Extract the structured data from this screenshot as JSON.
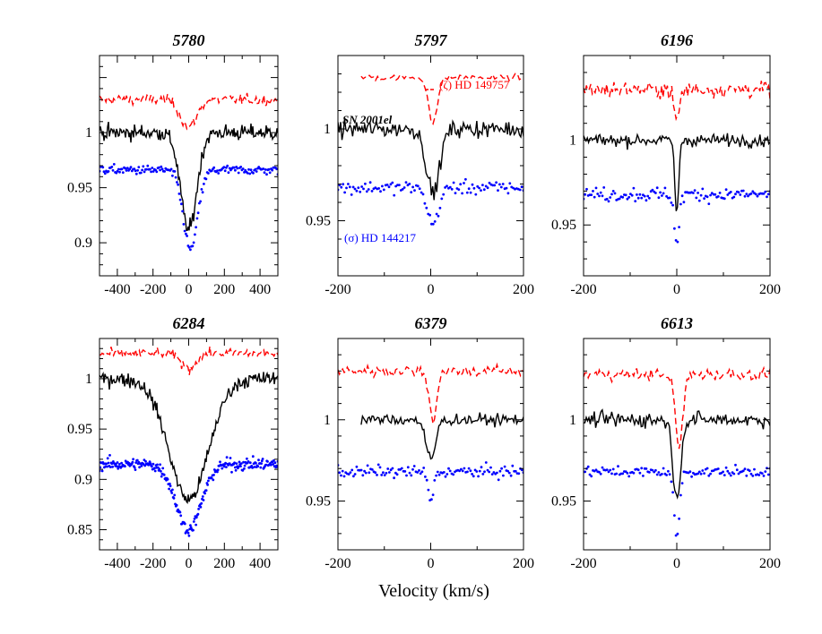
{
  "figure": {
    "xlabel": "Velocity (km/s)",
    "labels": {
      "zeta": "(ζ)  HD 149757",
      "sn": "SN 2001el",
      "sigma": "(σ) HD 144217"
    }
  },
  "colors": {
    "zeta": "#ff0000",
    "sn": "#000000",
    "sigma": "#0000ff",
    "axis": "#000000"
  },
  "chart_data": [
    {
      "type": "line",
      "title": "5780",
      "xlim": [
        -500,
        500
      ],
      "ylim": [
        0.87,
        1.07
      ],
      "xticks": [
        -400,
        -200,
        0,
        200,
        400
      ],
      "xtick_labels": [
        "-400",
        "-200",
        "0",
        "200",
        "400"
      ],
      "yticks": [
        0.9,
        0.95,
        1
      ],
      "ytick_labels": [
        "0.9",
        "0.95",
        "1"
      ],
      "series": [
        {
          "name": "(ζ) HD 149757",
          "style": "dashed",
          "baseline": 1.03,
          "depth": 0.025,
          "width": 45,
          "offset": 0,
          "noise": 0.004,
          "xmin": -500,
          "xmax": 500,
          "npts": 140
        },
        {
          "name": "SN 2001el",
          "style": "solid",
          "baseline": 1.0,
          "depth": 0.088,
          "width": 45,
          "offset": 0,
          "noise": 0.006,
          "xmin": -500,
          "xmax": 500,
          "npts": 200
        },
        {
          "name": "(σ) HD 144217",
          "style": "dotted",
          "baseline": 0.966,
          "depth": 0.072,
          "width": 40,
          "offset": 10,
          "noise": 0.0035,
          "xmin": -500,
          "xmax": 500,
          "npts": 160
        }
      ]
    },
    {
      "type": "line",
      "title": "5797",
      "xlim": [
        -200,
        200
      ],
      "ylim": [
        0.92,
        1.04
      ],
      "xticks": [
        -200,
        0,
        200
      ],
      "xtick_labels": [
        "-200",
        "0",
        "200"
      ],
      "yticks": [
        0.95,
        1
      ],
      "ytick_labels": [
        "0.95",
        "1"
      ],
      "series": [
        {
          "name": "(ζ) HD 149757",
          "style": "dashed",
          "baseline": 1.028,
          "depth": 0.026,
          "width": 9,
          "offset": 5,
          "noise": 0.0015,
          "xmin": -150,
          "xmax": 200,
          "npts": 80
        },
        {
          "name": "SN 2001el",
          "style": "solid",
          "baseline": 1.0,
          "depth": 0.035,
          "width": 14,
          "offset": 5,
          "noise": 0.004,
          "xmin": -200,
          "xmax": 200,
          "npts": 140
        },
        {
          "name": "(σ) HD 144217",
          "style": "dotted",
          "baseline": 0.968,
          "depth": 0.02,
          "width": 12,
          "offset": 5,
          "noise": 0.003,
          "xmin": -200,
          "xmax": 200,
          "npts": 110
        }
      ]
    },
    {
      "type": "line",
      "title": "6196",
      "xlim": [
        -200,
        200
      ],
      "ylim": [
        0.92,
        1.05
      ],
      "xticks": [
        -200,
        0,
        200
      ],
      "xtick_labels": [
        "-200",
        "0",
        "200"
      ],
      "yticks": [
        0.95,
        1
      ],
      "ytick_labels": [
        "0.95",
        "1"
      ],
      "series": [
        {
          "name": "(ζ) HD 149757",
          "style": "dashed",
          "baseline": 1.03,
          "depth": 0.018,
          "width": 6,
          "offset": 0,
          "noise": 0.004,
          "xmin": -200,
          "xmax": 200,
          "npts": 130
        },
        {
          "name": "SN 2001el",
          "style": "solid",
          "baseline": 1.0,
          "depth": 0.045,
          "width": 4,
          "offset": 0,
          "noise": 0.003,
          "xmin": -200,
          "xmax": 200,
          "npts": 150
        },
        {
          "name": "(σ) HD 144217",
          "style": "dotted",
          "baseline": 0.968,
          "depth": 0.03,
          "width": 5,
          "offset": 0,
          "noise": 0.0035,
          "xmin": -200,
          "xmax": 200,
          "npts": 120
        }
      ]
    },
    {
      "type": "line",
      "title": "6284",
      "xlim": [
        -500,
        500
      ],
      "ylim": [
        0.83,
        1.04
      ],
      "xticks": [
        -400,
        -200,
        0,
        200,
        400
      ],
      "xtick_labels": [
        "-400",
        "-200",
        "0",
        "200",
        "400"
      ],
      "yticks": [
        0.85,
        0.9,
        0.95,
        1
      ],
      "ytick_labels": [
        "0.85",
        "0.9",
        "0.95",
        "1"
      ],
      "series": [
        {
          "name": "(ζ) HD 149757",
          "style": "dashed",
          "baseline": 1.025,
          "depth": 0.015,
          "width": 40,
          "offset": 0,
          "noise": 0.004,
          "xmin": -500,
          "xmax": 500,
          "npts": 140
        },
        {
          "name": "SN 2001el",
          "style": "solid",
          "baseline": 1.0,
          "depth": 0.12,
          "width": 110,
          "offset": 0,
          "noise": 0.006,
          "xmin": -500,
          "xmax": 500,
          "npts": 200
        },
        {
          "name": "(σ) HD 144217",
          "style": "dotted",
          "baseline": 0.915,
          "depth": 0.065,
          "width": 70,
          "offset": 0,
          "noise": 0.005,
          "xmin": -500,
          "xmax": 500,
          "npts": 260
        }
      ]
    },
    {
      "type": "line",
      "title": "6379",
      "xlim": [
        -200,
        200
      ],
      "ylim": [
        0.92,
        1.05
      ],
      "xticks": [
        -200,
        0,
        200
      ],
      "xtick_labels": [
        "-200",
        "0",
        "200"
      ],
      "yticks": [
        0.95,
        1
      ],
      "ytick_labels": [
        "0.95",
        "1"
      ],
      "series": [
        {
          "name": "(ζ) HD 149757",
          "style": "dashed",
          "baseline": 1.03,
          "depth": 0.03,
          "width": 8,
          "offset": 5,
          "noise": 0.003,
          "xmin": -200,
          "xmax": 200,
          "npts": 120
        },
        {
          "name": "SN 2001el",
          "style": "solid",
          "baseline": 1.0,
          "depth": 0.025,
          "width": 10,
          "offset": 0,
          "noise": 0.003,
          "xmin": -150,
          "xmax": 200,
          "npts": 120
        },
        {
          "name": "(σ) HD 144217",
          "style": "dotted",
          "baseline": 0.968,
          "depth": 0.018,
          "width": 6,
          "offset": 0,
          "noise": 0.003,
          "xmin": -200,
          "xmax": 200,
          "npts": 120
        }
      ]
    },
    {
      "type": "line",
      "title": "6613",
      "xlim": [
        -200,
        200
      ],
      "ylim": [
        0.92,
        1.05
      ],
      "xticks": [
        -200,
        0,
        200
      ],
      "xtick_labels": [
        "-200",
        "0",
        "200"
      ],
      "yticks": [
        0.95,
        1
      ],
      "ytick_labels": [
        "0.95",
        "1"
      ],
      "series": [
        {
          "name": "(ζ) HD 149757",
          "style": "dashed",
          "baseline": 1.028,
          "depth": 0.045,
          "width": 8,
          "offset": 5,
          "noise": 0.003,
          "xmin": -200,
          "xmax": 200,
          "npts": 120
        },
        {
          "name": "SN 2001el",
          "style": "solid",
          "baseline": 1.0,
          "depth": 0.05,
          "width": 8,
          "offset": 0,
          "noise": 0.004,
          "xmin": -200,
          "xmax": 200,
          "npts": 140
        },
        {
          "name": "(σ) HD 144217",
          "style": "dotted",
          "baseline": 0.968,
          "depth": 0.04,
          "width": 6,
          "offset": 0,
          "noise": 0.0025,
          "xmin": -200,
          "xmax": 200,
          "npts": 120
        }
      ]
    }
  ]
}
